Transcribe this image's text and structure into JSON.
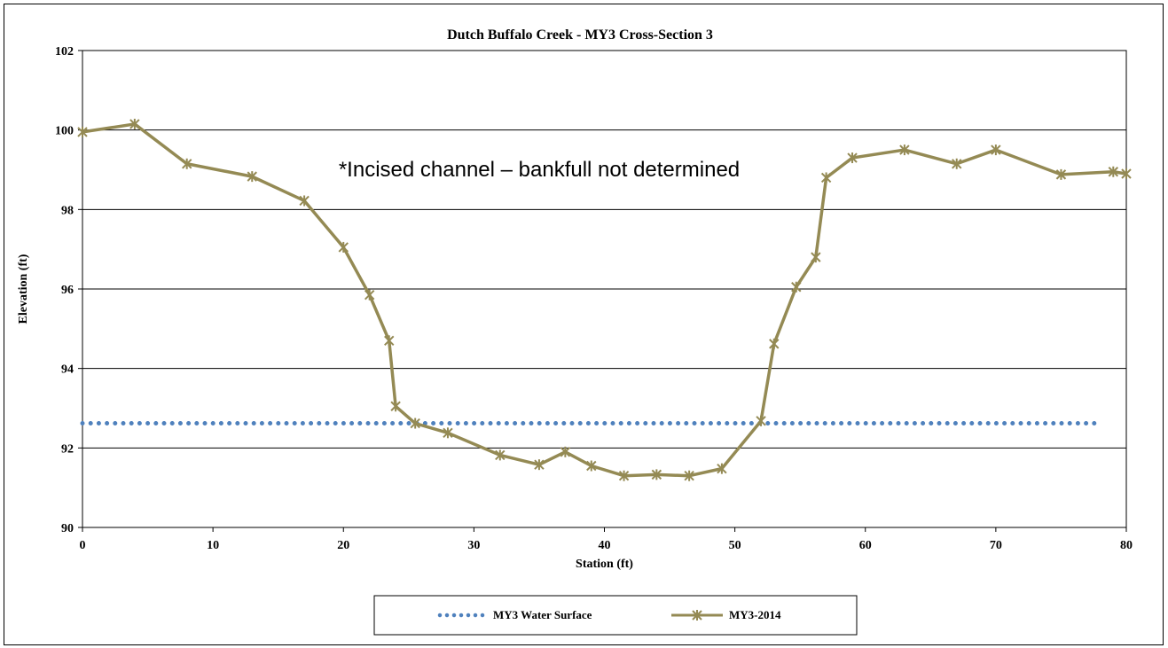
{
  "chart_data": {
    "type": "line",
    "title": "Dutch Buffalo Creek  - MY3 Cross-Section 3",
    "xlabel": "Station (ft)",
    "ylabel": "Elevation (ft)",
    "xlim": [
      0,
      80
    ],
    "ylim": [
      90,
      102
    ],
    "xticks": [
      "0",
      "10",
      "20",
      "30",
      "40",
      "50",
      "60",
      "70",
      "80"
    ],
    "yticks": [
      "90",
      "92",
      "94",
      "96",
      "98",
      "100",
      "102"
    ],
    "grid": "horizontal",
    "annotation": "*Incised channel – bankfull not determined",
    "legend_position": "bottom",
    "series": [
      {
        "name": "MY3 Water Surface",
        "style": "dotted",
        "color": "#4F81BD",
        "x": [
          0,
          78
        ],
        "y": [
          92.62,
          92.62
        ]
      },
      {
        "name": "MY3-2014",
        "style": "solid-x-markers",
        "color": "#948A54",
        "x": [
          0,
          4,
          8,
          13,
          17,
          20,
          22,
          23.5,
          24,
          25.5,
          28,
          32,
          35,
          37,
          39,
          41.5,
          44,
          46.5,
          49,
          52,
          53,
          54.7,
          56.2,
          57,
          59,
          63,
          67,
          70,
          75,
          79,
          80
        ],
        "y": [
          99.95,
          100.15,
          99.15,
          98.83,
          98.22,
          97.05,
          95.85,
          94.7,
          93.05,
          92.62,
          92.38,
          91.82,
          91.58,
          91.9,
          91.55,
          91.3,
          91.33,
          91.3,
          91.48,
          92.68,
          94.62,
          96.05,
          96.8,
          98.8,
          99.3,
          99.5,
          99.15,
          99.5,
          98.88,
          98.95,
          98.9
        ]
      }
    ]
  }
}
